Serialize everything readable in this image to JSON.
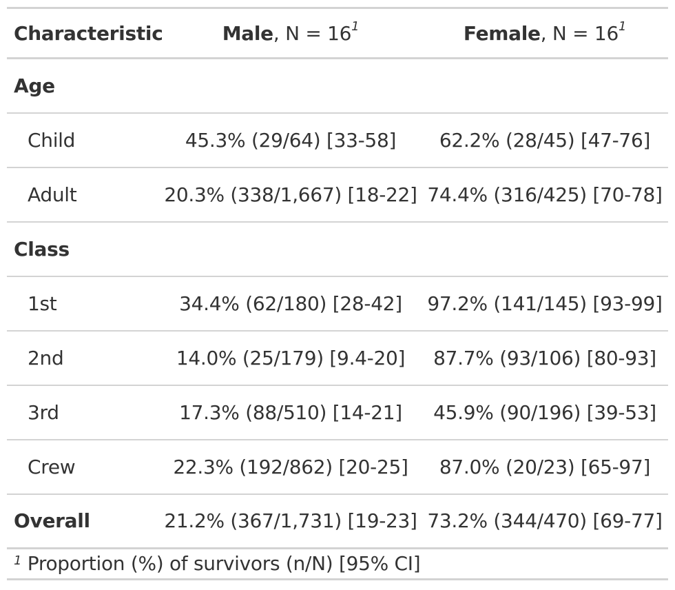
{
  "header": {
    "stub": "Characteristic",
    "male_label": "Male",
    "male_n": ", N = 16",
    "female_label": "Female",
    "female_n": ", N = 16",
    "footnote_mark": "1"
  },
  "rows": [
    {
      "type": "group",
      "label": "Age"
    },
    {
      "type": "level",
      "label": "Child",
      "male": "45.3% (29/64) [33-58]",
      "female": "62.2% (28/45) [47-76]"
    },
    {
      "type": "level",
      "label": "Adult",
      "male": "20.3% (338/1,667) [18-22]",
      "female": "74.4% (316/425) [70-78]"
    },
    {
      "type": "group",
      "label": "Class"
    },
    {
      "type": "level",
      "label": "1st",
      "male": "34.4% (62/180) [28-42]",
      "female": "97.2% (141/145) [93-99]"
    },
    {
      "type": "level",
      "label": "2nd",
      "male": "14.0% (25/179) [9.4-20]",
      "female": "87.7% (93/106) [80-93]"
    },
    {
      "type": "level",
      "label": "3rd",
      "male": "17.3% (88/510) [14-21]",
      "female": "45.9% (90/196) [39-53]"
    },
    {
      "type": "level",
      "label": "Crew",
      "male": "22.3% (192/862) [20-25]",
      "female": "87.0% (20/23) [65-97]"
    },
    {
      "type": "overall",
      "label": "Overall",
      "male": "21.2% (367/1,731) [19-23]",
      "female": "73.2% (344/470) [69-77]"
    }
  ],
  "footnote": {
    "mark": "1",
    "text": " Proportion (%) of survivors (n/N) [95% CI]"
  }
}
